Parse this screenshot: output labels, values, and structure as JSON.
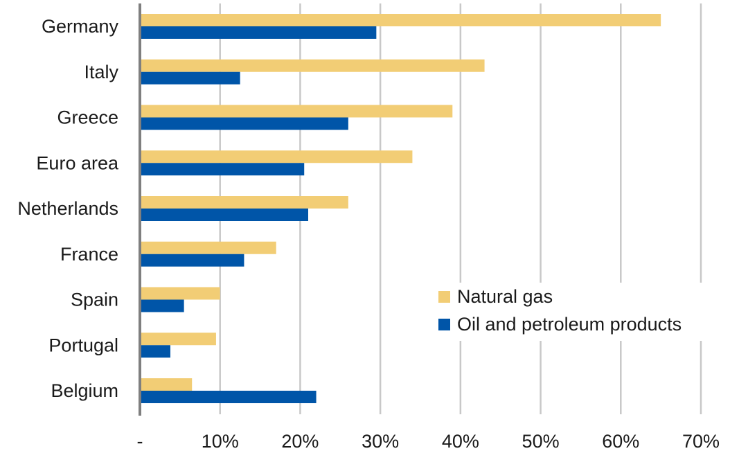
{
  "chart_data": {
    "type": "bar",
    "orientation": "horizontal",
    "categories": [
      "Germany",
      "Italy",
      "Greece",
      "Euro area",
      "Netherlands",
      "France",
      "Spain",
      "Portugal",
      "Belgium"
    ],
    "series": [
      {
        "name": "Natural gas",
        "color": "#F2CD75",
        "values": [
          65,
          43,
          39,
          34,
          26,
          17,
          10,
          9.5,
          6.5
        ]
      },
      {
        "name": "Oil and petroleum products",
        "color": "#0055A8",
        "values": [
          29.5,
          12.5,
          26,
          20.5,
          21,
          13,
          5.5,
          3.8,
          22
        ]
      }
    ],
    "x_ticks": [
      "-",
      "10%",
      "20%",
      "30%",
      "40%",
      "50%",
      "60%",
      "70%"
    ],
    "xlim": [
      0,
      70
    ],
    "grid": "vertical",
    "legend_position": "right, middle-lower",
    "colors": {
      "axis": "#7f7f7f",
      "grid": "#c8c8c8"
    }
  }
}
